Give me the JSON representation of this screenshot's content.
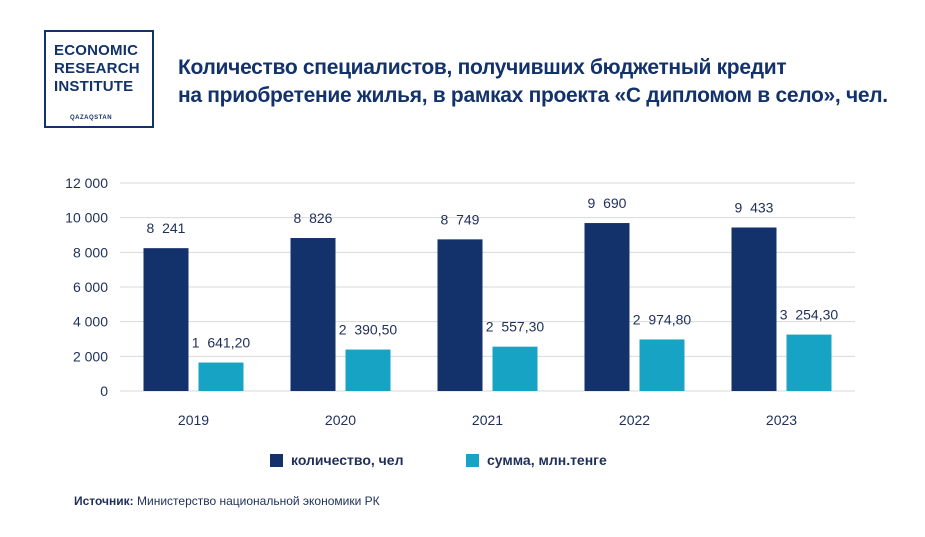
{
  "logo": {
    "line1": "ECONOMIC",
    "line2": "RESEARCH",
    "line3": "INSTITUTE",
    "sub": "QAZAQSTAN"
  },
  "title": {
    "line1": "Количество специалистов, получивших бюджетный кредит",
    "line2": "на приобретение жилья, в рамках проекта «С дипломом в село», чел."
  },
  "source": {
    "label": "Источник:",
    "text": "Министерство национальной экономики РК"
  },
  "colors": {
    "series1": "#13326b",
    "series2": "#17a3c4",
    "grid": "#d9d9d9",
    "text": "#1f2f5a"
  },
  "chart_data": {
    "type": "bar",
    "categories": [
      "2019",
      "2020",
      "2021",
      "2022",
      "2023"
    ],
    "series": [
      {
        "name": "количество, чел",
        "values": [
          8241,
          8826,
          8749,
          9690,
          9433
        ],
        "labels": [
          "8  241",
          "8  826",
          "8  749",
          "9  690",
          "9  433"
        ]
      },
      {
        "name": "сумма, млн.тенге",
        "values": [
          1641.2,
          2390.5,
          2557.3,
          2974.8,
          3254.3
        ],
        "labels": [
          "1  641,20",
          "2  390,50",
          "2  557,30",
          "2  974,80",
          "3  254,30"
        ]
      }
    ],
    "ylim": [
      0,
      12000
    ],
    "yticks": [
      0,
      2000,
      4000,
      6000,
      8000,
      10000,
      12000
    ],
    "ytick_labels": [
      "0",
      "2 000",
      "4 000",
      "6 000",
      "8 000",
      "10 000",
      "12 000"
    ],
    "legend_position": "bottom",
    "grid": true
  }
}
